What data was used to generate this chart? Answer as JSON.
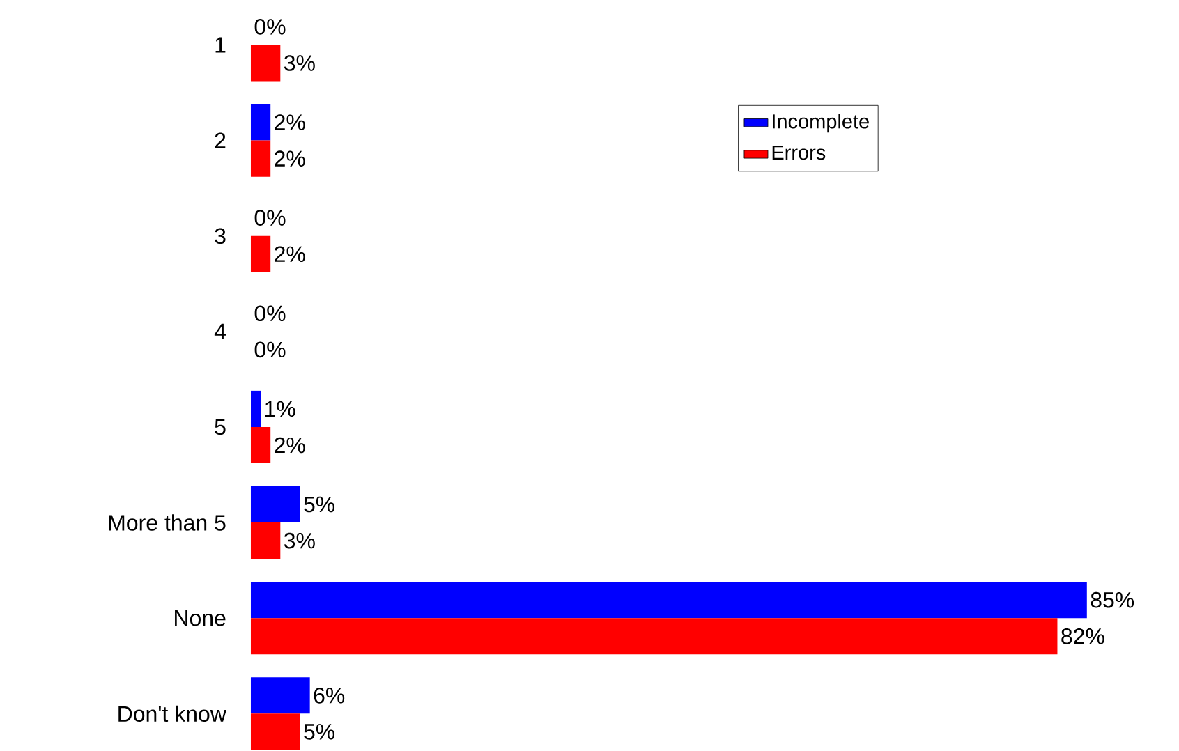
{
  "chart_data": {
    "type": "bar",
    "orientation": "horizontal",
    "legend": "top right",
    "categories": [
      "1",
      "2",
      "3",
      "4",
      "5",
      "More than 5",
      "None",
      "Don't know"
    ],
    "series": [
      {
        "name": "Incomplete",
        "color": "#0000ff",
        "values": [
          0,
          2,
          0,
          0,
          1,
          5,
          85,
          6
        ],
        "value_labels": [
          "0%",
          "2%",
          "0%",
          "0%",
          "1%",
          "5%",
          "85%",
          "6%"
        ]
      },
      {
        "name": "Errors",
        "color": "#ff0000",
        "values": [
          3,
          2,
          2,
          0,
          2,
          3,
          82,
          5
        ],
        "value_labels": [
          "3%",
          "2%",
          "2%",
          "0%",
          "2%",
          "3%",
          "82%",
          "5%"
        ]
      }
    ]
  }
}
